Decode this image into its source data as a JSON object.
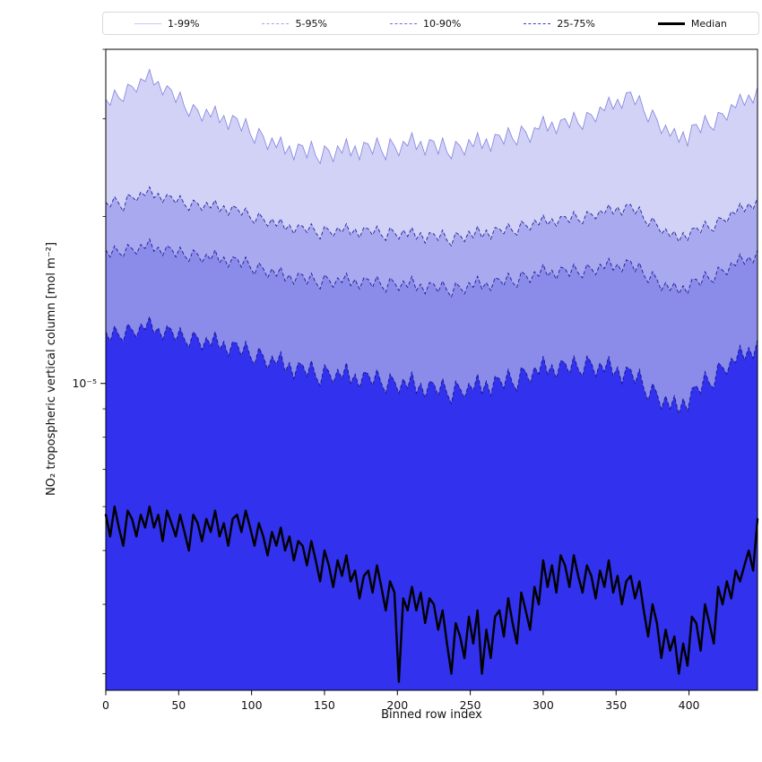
{
  "legend": {
    "items": [
      {
        "label": "1-99%",
        "color": "#c8c8f4",
        "dash": false,
        "width": 1
      },
      {
        "label": "5-95%",
        "color": "#a2a2ee",
        "dash": true,
        "width": 1
      },
      {
        "label": "10-90%",
        "color": "#6c6ce2",
        "dash": true,
        "width": 1.4
      },
      {
        "label": "25-75%",
        "color": "#3a3ad4",
        "dash": true,
        "width": 1.6
      },
      {
        "label": "Median",
        "color": "#000000",
        "dash": false,
        "width": 3
      }
    ]
  },
  "colors": {
    "band_1_99": "#d2d2f7",
    "band_5_95": "#a9a9f0",
    "band_10_90": "#8b8be9",
    "band_25_75": "#3131ee",
    "edge_99": "#8181e0",
    "edge_95": "#22229b",
    "edge_90": "#1d1d97",
    "edge_75": "#15158c",
    "median": "#000000",
    "axis": "#000000"
  },
  "chart_data": {
    "type": "line",
    "title": "",
    "xlabel": "Binned row index",
    "ylabel": "NO₂ tropospheric vertical column [mol m⁻²]",
    "yscale": "log",
    "xlim": [
      0,
      447
    ],
    "ylim": [
      2.8e-06,
      4e-05
    ],
    "x_ticks": [
      0,
      50,
      100,
      150,
      200,
      250,
      300,
      350,
      400
    ],
    "y_major_tick_value": 1e-05,
    "y_major_tick_label": "10⁻⁵",
    "y_minor_ticks": [
      3e-06,
      4e-06,
      5e-06,
      6e-06,
      7e-06,
      8e-06,
      9e-06,
      2e-05,
      3e-05,
      4e-05
    ],
    "x": {
      "start": 0,
      "step": 3,
      "count": 150
    },
    "values_unit": "1e-6 mol m⁻²",
    "series": [
      {
        "name": "p99",
        "legend": "1-99%",
        "values_1e6": [
          32.5,
          31.7,
          33.8,
          32.7,
          32.2,
          34.6,
          34.3,
          33.5,
          35.4,
          35.0,
          36.8,
          34.5,
          35.0,
          33.1,
          34.4,
          33.8,
          32.1,
          33.5,
          31.5,
          30.3,
          31.8,
          31.1,
          29.7,
          31.2,
          30.2,
          31.6,
          29.5,
          30.4,
          28.7,
          30.4,
          30.0,
          28.5,
          30.0,
          28.2,
          27.1,
          28.8,
          27.9,
          26.4,
          27.7,
          26.6,
          27.8,
          25.9,
          26.8,
          25.3,
          27.0,
          26.8,
          25.5,
          27.3,
          25.7,
          24.9,
          26.8,
          26.3,
          25.1,
          26.8,
          26.0,
          27.6,
          25.7,
          26.8,
          25.3,
          27.2,
          27.0,
          25.9,
          27.7,
          26.3,
          25.3,
          27.6,
          26.8,
          25.7,
          27.3,
          26.8,
          28.3,
          26.4,
          27.3,
          25.8,
          27.5,
          27.3,
          25.9,
          27.7,
          26.1,
          25.4,
          27.3,
          26.8,
          25.8,
          27.5,
          26.7,
          28.3,
          26.5,
          27.6,
          26.2,
          28.1,
          28.0,
          27.0,
          28.9,
          27.6,
          26.9,
          29.1,
          28.4,
          27.2,
          28.9,
          28.7,
          30.3,
          28.5,
          29.6,
          28.2,
          29.8,
          30.0,
          28.9,
          30.8,
          29.4,
          28.7,
          30.8,
          30.5,
          29.6,
          31.5,
          31.0,
          32.8,
          31.2,
          32.5,
          31.3,
          33.4,
          33.5,
          31.8,
          33.0,
          31.0,
          29.6,
          31.1,
          29.9,
          28.2,
          29.2,
          27.9,
          28.8,
          27.2,
          28.4,
          26.8,
          29.2,
          29.3,
          28.3,
          30.4,
          29.1,
          28.6,
          30.8,
          30.6,
          29.8,
          31.8,
          31.4,
          33.2,
          31.7,
          33.1,
          32.0,
          34.2
        ]
      },
      {
        "name": "p95",
        "legend": "5-95%",
        "values_1e6": [
          21.2,
          20.8,
          21.7,
          21.1,
          20.4,
          21.9,
          21.7,
          21.3,
          22.1,
          21.8,
          22.6,
          21.6,
          22.0,
          21.2,
          21.9,
          21.7,
          21.1,
          21.8,
          21.0,
          20.5,
          21.4,
          21.1,
          20.5,
          21.2,
          20.7,
          21.4,
          20.4,
          20.9,
          20.1,
          20.9,
          20.7,
          20.1,
          20.7,
          19.9,
          19.4,
          20.3,
          19.8,
          19.2,
          19.8,
          19.2,
          19.8,
          18.9,
          19.3,
          18.6,
          19.3,
          19.2,
          18.7,
          19.4,
          18.7,
          18.2,
          19.2,
          18.9,
          18.4,
          19.1,
          18.7,
          19.4,
          18.5,
          19.0,
          18.3,
          19.1,
          19.0,
          18.5,
          19.2,
          18.5,
          18.1,
          19.1,
          18.7,
          18.2,
          18.9,
          18.4,
          19.1,
          18.2,
          18.7,
          17.9,
          18.7,
          18.6,
          18.1,
          18.9,
          18.1,
          17.7,
          18.7,
          18.5,
          18.0,
          18.8,
          18.3,
          19.2,
          18.3,
          18.9,
          18.2,
          19.1,
          19.0,
          18.6,
          19.4,
          18.8,
          18.5,
          19.6,
          19.3,
          18.9,
          19.7,
          19.3,
          20.1,
          19.3,
          19.8,
          19.2,
          20.0,
          20.0,
          19.5,
          20.4,
          19.7,
          19.4,
          20.4,
          20.2,
          19.8,
          20.5,
          20.2,
          21.0,
          20.2,
          20.8,
          20.1,
          21.0,
          21.0,
          20.2,
          20.8,
          19.8,
          19.2,
          19.9,
          19.3,
          18.6,
          19.0,
          18.4,
          18.8,
          18.0,
          18.7,
          18.1,
          19.0,
          19.1,
          18.7,
          19.6,
          19.0,
          18.8,
          19.9,
          19.8,
          19.5,
          20.4,
          20.2,
          21.1,
          20.4,
          21.1,
          20.6,
          21.6
        ]
      },
      {
        "name": "p90",
        "legend": "10-90%",
        "values_1e6": [
          17.4,
          16.9,
          17.7,
          17.2,
          16.9,
          17.8,
          17.5,
          17.1,
          17.8,
          17.5,
          18.2,
          17.3,
          17.6,
          17.0,
          17.7,
          17.5,
          16.9,
          17.6,
          17.0,
          16.6,
          17.4,
          17.1,
          16.5,
          17.1,
          16.7,
          17.4,
          16.5,
          16.9,
          16.2,
          16.9,
          16.8,
          16.2,
          16.9,
          16.2,
          15.7,
          16.5,
          16.1,
          15.5,
          16.1,
          15.6,
          16.2,
          15.3,
          15.7,
          15.1,
          15.8,
          15.7,
          15.1,
          15.8,
          15.2,
          14.8,
          15.7,
          15.4,
          14.9,
          15.5,
          15.2,
          15.8,
          15.0,
          15.4,
          14.8,
          15.5,
          15.4,
          14.9,
          15.6,
          15.0,
          14.6,
          15.5,
          15.2,
          14.7,
          15.3,
          14.9,
          15.6,
          14.7,
          15.1,
          14.5,
          15.2,
          15.1,
          14.6,
          15.3,
          14.7,
          14.3,
          15.2,
          14.9,
          14.5,
          15.2,
          14.9,
          15.6,
          14.8,
          15.2,
          14.7,
          15.5,
          15.4,
          15.0,
          15.8,
          15.2,
          14.9,
          15.9,
          15.7,
          15.2,
          15.9,
          15.6,
          16.4,
          15.6,
          16.0,
          15.4,
          16.2,
          16.1,
          15.6,
          16.4,
          15.8,
          15.5,
          16.4,
          16.1,
          15.7,
          16.4,
          16.1,
          16.8,
          16.0,
          16.4,
          15.9,
          16.7,
          16.6,
          15.9,
          16.5,
          15.7,
          15.2,
          15.9,
          15.4,
          14.7,
          15.2,
          14.7,
          15.2,
          14.5,
          15.0,
          14.5,
          15.4,
          15.4,
          15.0,
          15.9,
          15.4,
          15.2,
          16.2,
          16.0,
          15.7,
          16.5,
          16.3,
          17.1,
          16.4,
          16.9,
          16.5,
          17.4
        ]
      },
      {
        "name": "p75",
        "legend": "25-75%",
        "values_1e6": [
          12.4,
          11.9,
          12.7,
          12.2,
          11.9,
          12.8,
          12.5,
          12.1,
          12.8,
          12.5,
          13.2,
          12.3,
          12.6,
          12.0,
          12.7,
          12.5,
          11.9,
          12.6,
          12.0,
          11.6,
          12.4,
          12.1,
          11.5,
          12.1,
          11.7,
          12.4,
          11.5,
          11.9,
          11.2,
          11.9,
          11.8,
          11.2,
          11.9,
          11.2,
          10.8,
          11.6,
          11.2,
          10.6,
          11.2,
          10.8,
          11.4,
          10.5,
          10.9,
          10.2,
          10.9,
          10.8,
          10.3,
          11.0,
          10.3,
          9.9,
          10.8,
          10.5,
          10.0,
          10.6,
          10.2,
          10.9,
          10.0,
          10.4,
          9.8,
          10.5,
          10.4,
          9.9,
          10.6,
          10.0,
          9.6,
          10.4,
          10.1,
          9.6,
          10.2,
          9.8,
          10.5,
          9.6,
          10.0,
          9.4,
          10.1,
          10.0,
          9.5,
          10.2,
          9.6,
          9.2,
          10.1,
          9.8,
          9.4,
          10.0,
          9.7,
          10.4,
          9.6,
          10.1,
          9.5,
          10.3,
          10.2,
          9.8,
          10.6,
          10.0,
          9.7,
          10.7,
          10.5,
          10.0,
          10.7,
          10.4,
          11.2,
          10.4,
          10.8,
          10.2,
          11.0,
          10.9,
          10.4,
          11.2,
          10.6,
          10.3,
          11.2,
          10.9,
          10.3,
          10.9,
          10.5,
          11.2,
          10.3,
          10.7,
          10.0,
          10.7,
          10.6,
          10.0,
          10.6,
          9.8,
          9.3,
          10.0,
          9.6,
          9.0,
          9.5,
          9.0,
          9.5,
          8.8,
          9.4,
          8.9,
          9.8,
          9.9,
          9.6,
          10.5,
          10.0,
          9.8,
          10.9,
          10.7,
          10.4,
          11.1,
          10.9,
          11.7,
          11.0,
          11.6,
          11.1,
          12.0
        ]
      },
      {
        "name": "median",
        "legend": "Median",
        "values_1e6": [
          5.8,
          5.3,
          6.0,
          5.5,
          5.1,
          5.9,
          5.7,
          5.3,
          5.8,
          5.5,
          6.0,
          5.5,
          5.8,
          5.2,
          5.9,
          5.6,
          5.3,
          5.8,
          5.4,
          5.0,
          5.8,
          5.6,
          5.2,
          5.7,
          5.4,
          5.9,
          5.3,
          5.6,
          5.1,
          5.7,
          5.8,
          5.4,
          5.9,
          5.5,
          5.1,
          5.6,
          5.3,
          4.9,
          5.4,
          5.1,
          5.5,
          5.0,
          5.3,
          4.8,
          5.2,
          5.1,
          4.7,
          5.2,
          4.8,
          4.4,
          5.0,
          4.7,
          4.3,
          4.8,
          4.5,
          4.9,
          4.4,
          4.6,
          4.1,
          4.5,
          4.6,
          4.2,
          4.7,
          4.3,
          3.9,
          4.4,
          4.2,
          2.9,
          4.1,
          3.9,
          4.3,
          3.9,
          4.2,
          3.7,
          4.1,
          4.0,
          3.6,
          3.9,
          3.4,
          3.0,
          3.7,
          3.5,
          3.2,
          3.8,
          3.4,
          3.9,
          3.0,
          3.6,
          3.2,
          3.8,
          3.9,
          3.5,
          4.1,
          3.7,
          3.4,
          4.2,
          3.9,
          3.6,
          4.3,
          4.0,
          4.8,
          4.3,
          4.7,
          4.2,
          4.9,
          4.7,
          4.3,
          4.9,
          4.5,
          4.2,
          4.7,
          4.5,
          4.1,
          4.6,
          4.3,
          4.8,
          4.2,
          4.5,
          4.0,
          4.4,
          4.5,
          4.1,
          4.4,
          3.9,
          3.5,
          4.0,
          3.7,
          3.2,
          3.6,
          3.3,
          3.5,
          3.0,
          3.4,
          3.1,
          3.8,
          3.7,
          3.3,
          4.0,
          3.7,
          3.4,
          4.3,
          4.0,
          4.4,
          4.1,
          4.6,
          4.4,
          4.7,
          5.0,
          4.6,
          5.7
        ]
      }
    ]
  }
}
